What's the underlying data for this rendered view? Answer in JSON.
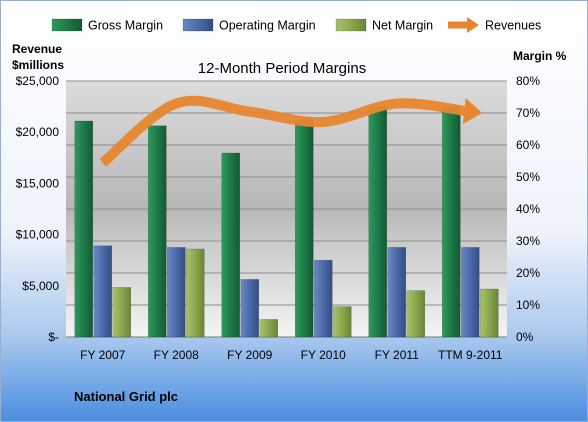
{
  "chart_data": {
    "type": "bar",
    "title": "12-Month Period Margins",
    "categories": [
      "FY 2007",
      "FY 2008",
      "FY 2009",
      "FY 2010",
      "FY 2011",
      "TTM 9-2011"
    ],
    "series": [
      {
        "name": "Gross Margin",
        "axis": "right",
        "unit": "%",
        "values": [
          67.5,
          66,
          57.5,
          68,
          72,
          72
        ]
      },
      {
        "name": "Operating Margin",
        "axis": "right",
        "unit": "%",
        "values": [
          28.5,
          28,
          18,
          24,
          28,
          28
        ]
      },
      {
        "name": "Net Margin",
        "axis": "right",
        "unit": "%",
        "values": [
          15.5,
          27.5,
          5.5,
          9.5,
          14.5,
          15
        ]
      },
      {
        "name": "Revenues",
        "axis": "left",
        "type": "line",
        "values": [
          17000,
          22800,
          22000,
          21000,
          22800,
          22000
        ]
      }
    ],
    "ylabel_left": [
      "Revenue",
      "$millions"
    ],
    "ylabel_right": "Margin %",
    "ylim_left": [
      0,
      25000
    ],
    "ylim_right": [
      0,
      80
    ],
    "left_ticks": [
      "$-",
      "$5,000",
      "$10,000",
      "$15,000",
      "$20,000",
      "$25,000"
    ],
    "right_ticks": [
      "0%",
      "10%",
      "20%",
      "30%",
      "40%",
      "50%",
      "60%",
      "70%",
      "80%"
    ],
    "grid": true,
    "legend_position": "top",
    "colors": {
      "Gross Margin": "#1e7a48",
      "Operating Margin": "#4a6aa8",
      "Net Margin": "#8aa84e",
      "Revenues": "#e8862f"
    }
  },
  "footer": {
    "company": "National Grid plc"
  }
}
